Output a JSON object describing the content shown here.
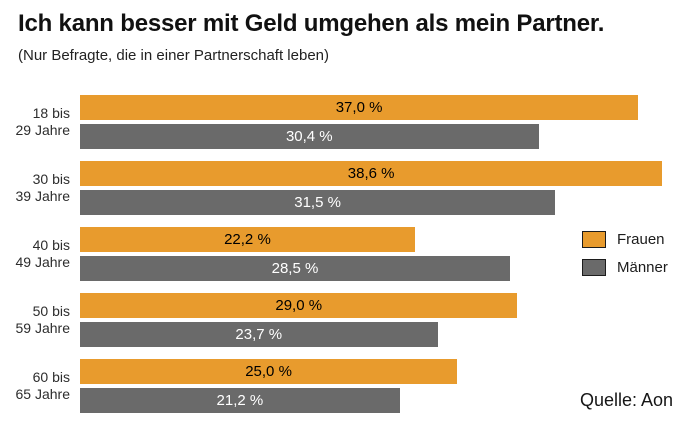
{
  "source": {
    "text": "Quelle: Aon"
  },
  "colors": {
    "frauen": "#E89B2D",
    "maenner": "#6A6A6A",
    "legend_swatch_border": "#1c1c1c",
    "background": "#ffffff"
  },
  "chart_data": {
    "type": "bar",
    "orientation": "horizontal",
    "title": "Ich kann besser mit Geld umgehen als mein Partner.",
    "subtitle": "(Nur Befragte, die in einer Partnerschaft leben)",
    "categories": [
      [
        "18 bis",
        "29 Jahre"
      ],
      [
        "30 bis",
        "39 Jahre"
      ],
      [
        "40 bis",
        "49 Jahre"
      ],
      [
        "50 bis",
        "59 Jahre"
      ],
      [
        "60 bis",
        "65 Jahre"
      ]
    ],
    "series": [
      {
        "name": "Frauen",
        "color": "#E89B2D",
        "label_color": "#000000",
        "values": [
          37.0,
          38.6,
          22.2,
          29.0,
          25.0
        ],
        "labels": [
          "37,0 %",
          "38,6 %",
          "22,2 %",
          "29,0 %",
          "25,0 %"
        ]
      },
      {
        "name": "Männer",
        "color": "#6A6A6A",
        "label_color": "#ffffff",
        "values": [
          30.4,
          31.5,
          28.5,
          23.7,
          21.2
        ],
        "labels": [
          "30,4 %",
          "31,5 %",
          "28,5 %",
          "23,7 %",
          "21,2 %"
        ]
      }
    ],
    "xlabel": "",
    "ylabel": "",
    "xlim": [
      0,
      41.1
    ],
    "grid": false,
    "value_labels": "centered-in-bar",
    "legend_position": "right"
  }
}
